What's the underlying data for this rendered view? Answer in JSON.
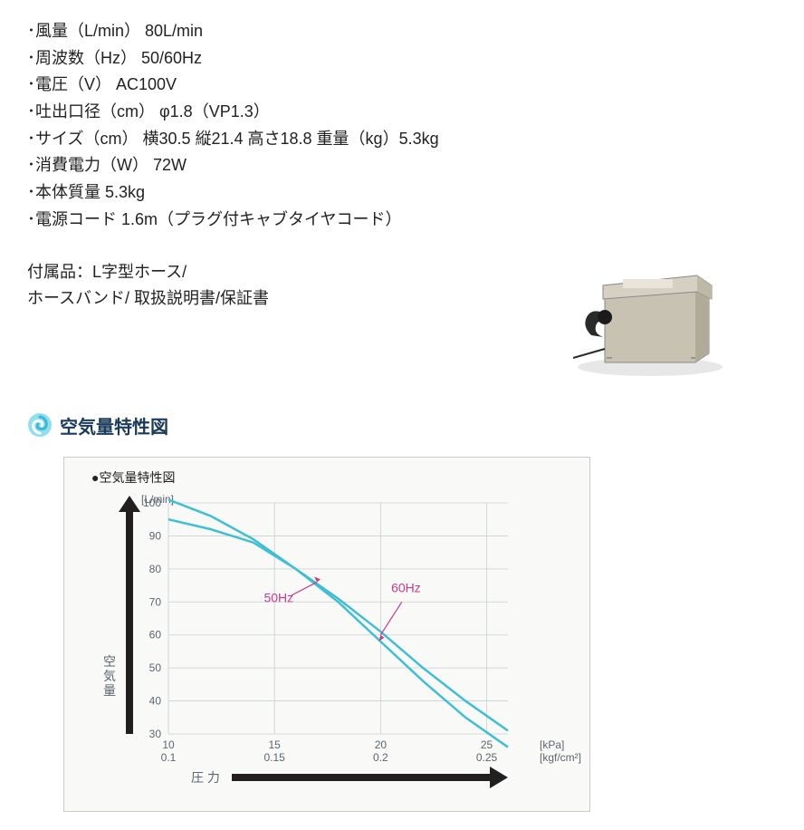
{
  "specs": [
    "･風量（L/min） 80L/min",
    "･周波数（Hz） 50/60Hz",
    "･電圧（V） AC100V",
    "･吐出口径（cm） φ1.8（VP1.3）",
    "･サイズ（cm） 横30.5 縦21.4 高さ18.8 重量（kg）5.3kg",
    "･消費電力（W） 72W",
    "･本体質量 5.3kg",
    "･電源コード 1.6m（プラグ付キャブタイヤコード）"
  ],
  "accessories": {
    "line1": "付属品：L字型ホース/",
    "line2": "ホースバンド/ 取扱説明書/保証書"
  },
  "section": {
    "title": "空気量特性図",
    "icon_bg": "#8fdff0",
    "icon_swirl": "#39b9d8"
  },
  "chart": {
    "title": "●空気量特性図",
    "ylabel": "空気量",
    "ylabel_unit": "[L/min]",
    "xlabel": "圧 力",
    "xlabel_unit1": "[kPa]",
    "xlabel_unit2": "[kgf/cm²]",
    "yticks": [
      30,
      40,
      50,
      60,
      70,
      80,
      90,
      100
    ],
    "xticks_top": [
      10,
      15,
      20,
      25
    ],
    "xticks_bot": [
      0.1,
      0.15,
      0.2,
      0.25
    ],
    "series": [
      {
        "label": "50Hz",
        "color": "#3fbfd4",
        "label_color": "#c83a8c",
        "points": [
          [
            10,
            95
          ],
          [
            12,
            92
          ],
          [
            14,
            88
          ],
          [
            16,
            80
          ],
          [
            18,
            71
          ],
          [
            20,
            61
          ],
          [
            22,
            50
          ],
          [
            24,
            40
          ],
          [
            26,
            31
          ]
        ]
      },
      {
        "label": "60Hz",
        "color": "#3fbfd4",
        "label_color": "#c83a8c",
        "points": [
          [
            10,
            101
          ],
          [
            12,
            96
          ],
          [
            14,
            89
          ],
          [
            16,
            80
          ],
          [
            18,
            70
          ],
          [
            20,
            58
          ],
          [
            22,
            46
          ],
          [
            24,
            35
          ],
          [
            26,
            26
          ]
        ]
      }
    ],
    "bg_color": "#f9f9f7",
    "grid_color": "#c7d0d6",
    "arrow_color": "#231f20",
    "text_color": "#5a6670",
    "font_size_tick": 12,
    "font_size_label": 14,
    "xlim": [
      10,
      26
    ],
    "ylim": [
      30,
      100
    ]
  },
  "product_img": {
    "body_color": "#c8c2b2",
    "lid_color": "#d6d0c2",
    "hose_color": "#2a2a2a"
  }
}
